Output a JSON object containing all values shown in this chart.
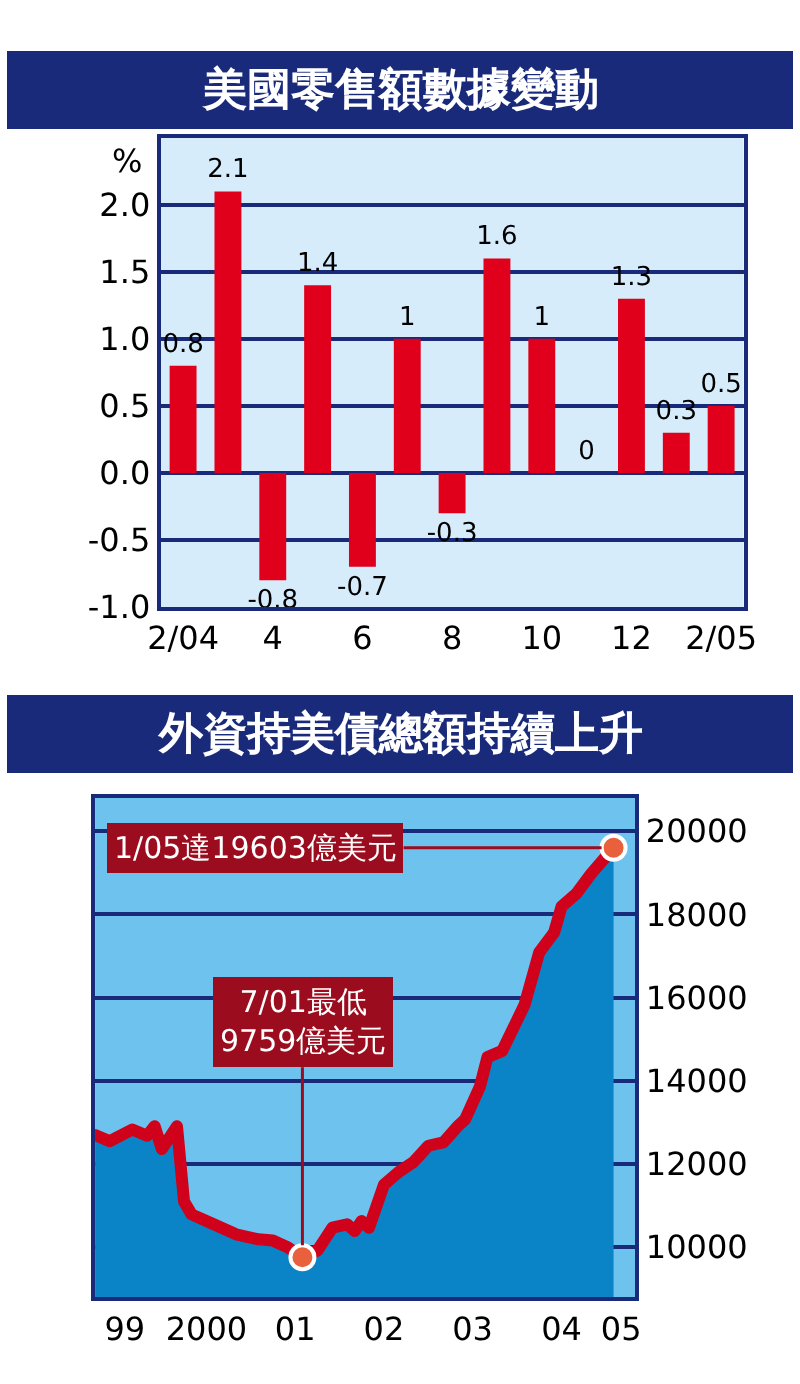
{
  "chart_data": [
    {
      "type": "bar",
      "title": "美國零售額數據變動",
      "ylabel": "%",
      "categories": [
        "2/04",
        null,
        "4",
        null,
        "6",
        null,
        "8",
        null,
        "10",
        null,
        "12",
        null,
        "2/05"
      ],
      "series": [
        {
          "color": "#e0001b",
          "values": [
            0.8,
            2.1,
            -0.8,
            1.4,
            -0.7,
            1,
            -0.3,
            1.6,
            1,
            0,
            1.3,
            0.3,
            0.5
          ]
        }
      ],
      "data_labels": true,
      "ylim": [
        -1.0,
        2.5
      ],
      "yticks": [
        {
          "value": -1,
          "label": "-1.0"
        },
        -0.5,
        {
          "value": 0,
          "label": "0.0"
        },
        0.5,
        {
          "value": 1,
          "label": "1.0"
        },
        1.5,
        {
          "value": 2,
          "label": "2.0"
        }
      ],
      "grid": "y"
    },
    {
      "type": "area",
      "title": "外資持美債總額持續上升",
      "series": [
        {
          "type": "area",
          "color": "#0a84c6",
          "x": [
            "1999-03",
            "1999-05",
            "1999-08",
            "1999-10",
            "1999-11",
            "1999-12",
            "2000-02",
            "2000-03",
            "2000-04",
            "2000-06",
            "2000-10",
            "2001-01",
            "2001-03",
            "2001-05",
            "2001-07",
            "2001-09",
            "2001-11",
            "2002-01",
            "2002-02",
            "2002-03",
            "2002-04",
            "2002-06",
            "2002-08",
            "2002-10",
            "2002-12",
            "2003-02",
            "2003-04",
            "2003-05",
            "2003-07",
            "2003-08",
            "2003-10",
            "2004-01",
            "2004-03",
            "2004-05",
            "2004-06",
            "2004-08",
            "2004-10",
            "2005-01"
          ],
          "values": [
            12700,
            12550,
            12830,
            12680,
            12910,
            12360,
            12910,
            11100,
            10790,
            10630,
            10310,
            10190,
            10160,
            10000,
            9759,
            9920,
            10470,
            10550,
            10390,
            10630,
            10470,
            11500,
            11810,
            12050,
            12440,
            12520,
            12910,
            13070,
            13860,
            14570,
            14720,
            15830,
            17090,
            17560,
            18190,
            18500,
            18980,
            19603
          ]
        },
        {
          "type": "line",
          "color": "#d0021b",
          "x": [
            "1999-03",
            "1999-05",
            "1999-08",
            "1999-10",
            "1999-11",
            "1999-12",
            "2000-02",
            "2000-03",
            "2000-04",
            "2000-06",
            "2000-10",
            "2001-01",
            "2001-03",
            "2001-05",
            "2001-07",
            "2001-09",
            "2001-11",
            "2002-01",
            "2002-02",
            "2002-03",
            "2002-04",
            "2002-06",
            "2002-08",
            "2002-10",
            "2002-12",
            "2003-02",
            "2003-04",
            "2003-05",
            "2003-07",
            "2003-08",
            "2003-10",
            "2004-01",
            "2004-03",
            "2004-05",
            "2004-06",
            "2004-08",
            "2004-10",
            "2005-01"
          ],
          "values": [
            12700,
            12550,
            12830,
            12680,
            12910,
            12360,
            12910,
            11100,
            10790,
            10630,
            10310,
            10190,
            10160,
            10000,
            9759,
            9920,
            10470,
            10550,
            10390,
            10630,
            10470,
            11500,
            11810,
            12050,
            12440,
            12520,
            12910,
            13070,
            13860,
            14570,
            14720,
            15830,
            17090,
            17560,
            18190,
            18500,
            18980,
            19603
          ]
        }
      ],
      "xlim": [
        "1999-03",
        "2005-04"
      ],
      "xticks": [
        {
          "value": "1999-07",
          "label": "99"
        },
        {
          "value": "2000-06",
          "label": "2000"
        },
        {
          "value": "2001-06",
          "label": "01"
        },
        {
          "value": "2002-06",
          "label": "02"
        },
        {
          "value": "2003-06",
          "label": "03"
        },
        {
          "value": "2004-06",
          "label": "04"
        },
        {
          "value": "2005-02",
          "label": "05"
        }
      ],
      "ylim": [
        8800,
        20800
      ],
      "yticks": [
        10000,
        12000,
        14000,
        16000,
        18000,
        20000
      ],
      "grid": "y",
      "annotations": [
        {
          "text": "1/05達19603億美元",
          "x": "2005-01",
          "y": 19603
        },
        {
          "text": "7/01最低\n9759億美元",
          "x": "2001-07",
          "y": 9759
        }
      ]
    }
  ]
}
